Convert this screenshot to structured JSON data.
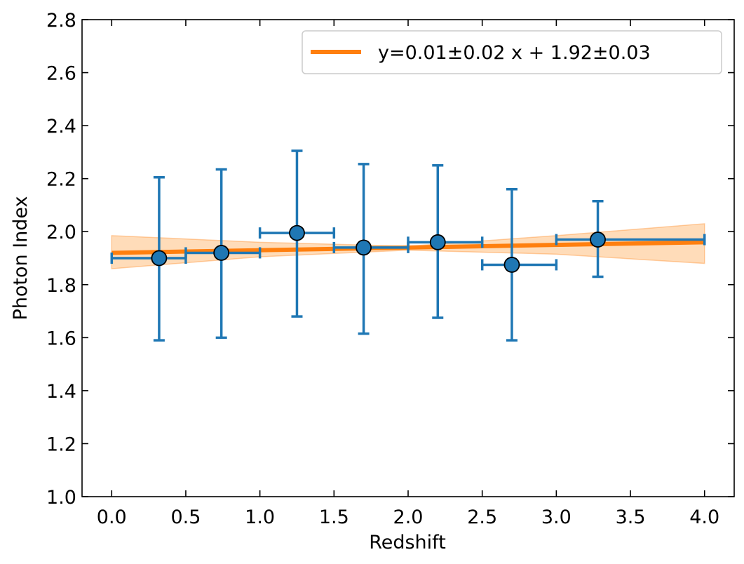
{
  "chart_data": {
    "type": "scatter",
    "title": "",
    "xlabel": "Redshift",
    "ylabel": "Photon Index",
    "xlim": [
      -0.2,
      4.2
    ],
    "ylim": [
      1.0,
      2.8
    ],
    "xticks": [
      "0.0",
      "0.5",
      "1.0",
      "1.5",
      "2.0",
      "2.5",
      "3.0",
      "3.5",
      "4.0"
    ],
    "yticks": [
      "1.0",
      "1.2",
      "1.4",
      "1.6",
      "1.8",
      "2.0",
      "2.2",
      "2.4",
      "2.6",
      "2.8"
    ],
    "grid": false,
    "legend_position": "top-right",
    "colors": {
      "points": "#1f77b4",
      "fit": "#ff7f0e",
      "band": "#ffbf80"
    },
    "series": [
      {
        "kind": "errorbar",
        "points": [
          {
            "x": 0.32,
            "y": 1.9,
            "xlo": 0.0,
            "xhi": 0.5,
            "ylo": 1.59,
            "yhi": 2.205
          },
          {
            "x": 0.74,
            "y": 1.92,
            "xlo": 0.5,
            "xhi": 1.0,
            "ylo": 1.6,
            "yhi": 2.235
          },
          {
            "x": 1.25,
            "y": 1.995,
            "xlo": 1.0,
            "xhi": 1.5,
            "ylo": 1.68,
            "yhi": 2.305
          },
          {
            "x": 1.7,
            "y": 1.94,
            "xlo": 1.5,
            "xhi": 2.0,
            "ylo": 1.615,
            "yhi": 2.255
          },
          {
            "x": 2.2,
            "y": 1.96,
            "xlo": 2.0,
            "xhi": 2.5,
            "ylo": 1.675,
            "yhi": 2.25
          },
          {
            "x": 2.7,
            "y": 1.875,
            "xlo": 2.5,
            "xhi": 3.0,
            "ylo": 1.59,
            "yhi": 2.16
          },
          {
            "x": 3.28,
            "y": 1.97,
            "xlo": 3.0,
            "xhi": 4.0,
            "ylo": 1.83,
            "yhi": 2.115
          }
        ]
      },
      {
        "kind": "fit",
        "name": "y=0.01±0.02 x + 1.92±0.03",
        "slope": 0.01,
        "slope_err": 0.02,
        "intercept": 1.92,
        "intercept_err": 0.03,
        "x_range": [
          0.0,
          4.0
        ],
        "band": {
          "x": [
            0.0,
            1.0,
            2.0,
            3.0,
            4.0
          ],
          "lower": [
            1.86,
            1.905,
            1.93,
            1.915,
            1.88
          ],
          "upper": [
            1.985,
            1.96,
            1.945,
            1.985,
            2.03
          ]
        }
      }
    ]
  }
}
